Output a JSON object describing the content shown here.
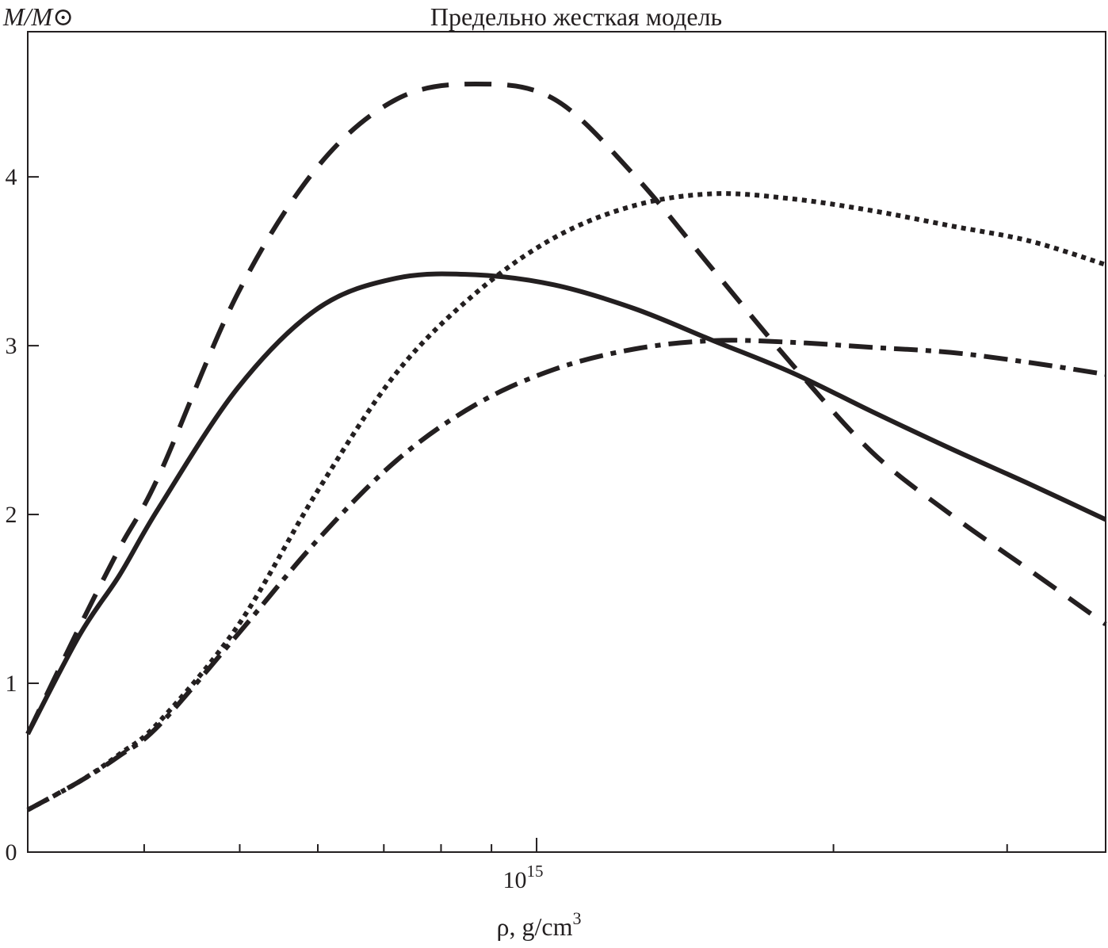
{
  "chart_data": {
    "type": "line",
    "title": "Предельно жесткая модель",
    "ylabel": "M/M⊙",
    "xlabel": "ρ, g/cm",
    "xlabel_superscript": "3",
    "xscale": "log",
    "xlim_log10": [
      14.484,
      15.577
    ],
    "ylim": [
      0,
      4.86
    ],
    "yticks": [
      0,
      1,
      2,
      3,
      4
    ],
    "ytick_labels": [
      "0",
      "1",
      "2",
      "3",
      "4"
    ],
    "xtick_major_log10": 15,
    "xtick_label_base": "10",
    "xtick_label_exp": "15",
    "xtick_minor": [
      400000000000000.0,
      500000000000000.0,
      600000000000000.0,
      700000000000000.0,
      800000000000000.0,
      900000000000000.0,
      2000000000000000.0,
      3000000000000000.0
    ],
    "grid": false,
    "legend": "none",
    "x_log10": [
      14.484,
      14.537,
      14.577,
      14.617,
      14.697,
      14.778,
      14.858,
      14.938,
      15.018,
      15.099,
      15.179,
      15.259,
      15.34,
      15.42,
      15.5,
      15.577
    ],
    "series": [
      {
        "name": "solid",
        "style": "solid",
        "values": [
          0.7,
          1.29,
          1.64,
          2.04,
          2.75,
          3.22,
          3.4,
          3.42,
          3.36,
          3.22,
          3.03,
          2.84,
          2.61,
          2.39,
          2.18,
          1.97
        ]
      },
      {
        "name": "dashed",
        "style": "dashed",
        "values": [
          0.7,
          1.34,
          1.8,
          2.23,
          3.31,
          4.06,
          4.46,
          4.55,
          4.46,
          4.01,
          3.45,
          2.89,
          2.37,
          2.0,
          1.67,
          1.35
        ]
      },
      {
        "name": "dotted",
        "style": "dotted",
        "values": [
          0.25,
          0.42,
          0.58,
          0.77,
          1.34,
          2.14,
          2.84,
          3.31,
          3.64,
          3.83,
          3.9,
          3.87,
          3.8,
          3.71,
          3.62,
          3.48
        ]
      },
      {
        "name": "dash-dot",
        "style": "dashdot",
        "values": [
          0.25,
          0.42,
          0.57,
          0.75,
          1.29,
          1.85,
          2.32,
          2.65,
          2.86,
          2.98,
          3.03,
          3.02,
          2.99,
          2.96,
          2.9,
          2.83
        ]
      }
    ]
  }
}
